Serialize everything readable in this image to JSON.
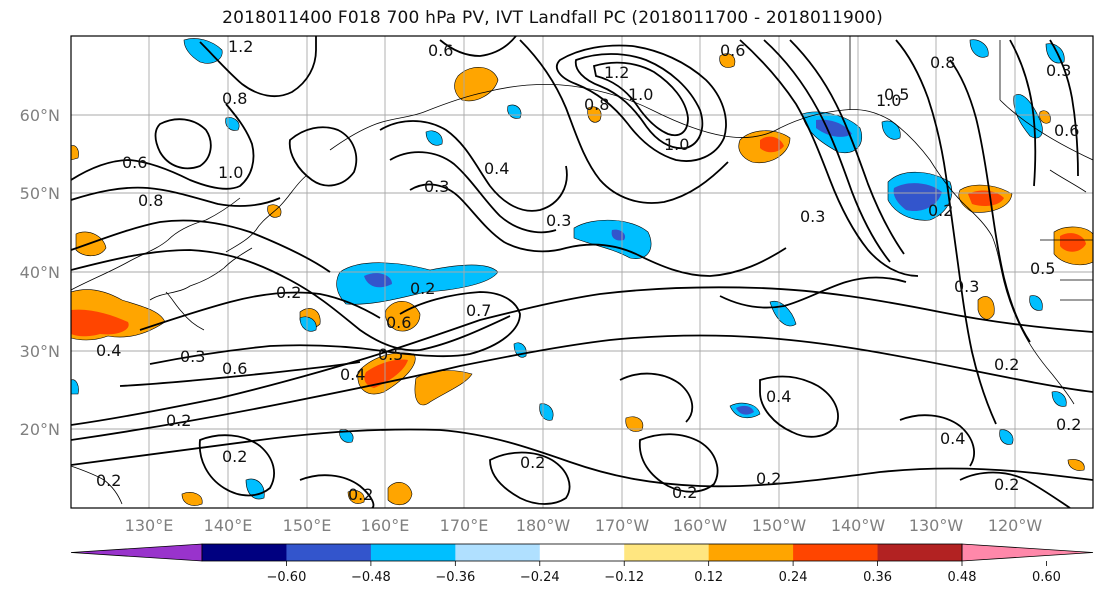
{
  "title": "2018011400 F018 700 hPa PV, IVT Landfall PC (2018011700 - 2018011900)",
  "lat_labels": [
    "60°N",
    "50°N",
    "40°N",
    "30°N",
    "20°N"
  ],
  "lon_labels": [
    "130°E",
    "140°E",
    "150°E",
    "160°E",
    "170°E",
    "180°W",
    "170°W",
    "160°W",
    "150°W",
    "140°W",
    "130°W",
    "120°W"
  ],
  "contour_labels": [
    "1.2",
    "0.6",
    "0.8",
    "1.2",
    "1.0",
    "0.8",
    "1.0",
    "0.6",
    "0.8",
    "1.0",
    "0.3",
    "0.6",
    "1.0",
    "0.8",
    "0.3",
    "0.4",
    "0.3",
    "0.3",
    "0.2",
    "0.5",
    "0.6",
    "0.3",
    "0.5",
    "0.2",
    "0.2",
    "0.6",
    "0.7",
    "0.5",
    "0.4",
    "0.3",
    "0.6",
    "0.4",
    "0.2",
    "0.2",
    "0.2",
    "0.2",
    "0.2",
    "0.2",
    "0.4",
    "0.2",
    "0.4",
    "0.2",
    "0.2",
    "0.2"
  ],
  "colorbar": {
    "colors": [
      "#9933cc",
      "#000080",
      "#3355cc",
      "#00bfff",
      "#b0e0ff",
      "#ffffff",
      "#ffe680",
      "#ffa500",
      "#ff4500",
      "#b22222",
      "#ff88aa"
    ],
    "ticks": [
      "−0.60",
      "−0.48",
      "−0.36",
      "−0.24",
      "−0.12",
      "0.12",
      "0.24",
      "0.36",
      "0.48",
      "0.60"
    ]
  }
}
